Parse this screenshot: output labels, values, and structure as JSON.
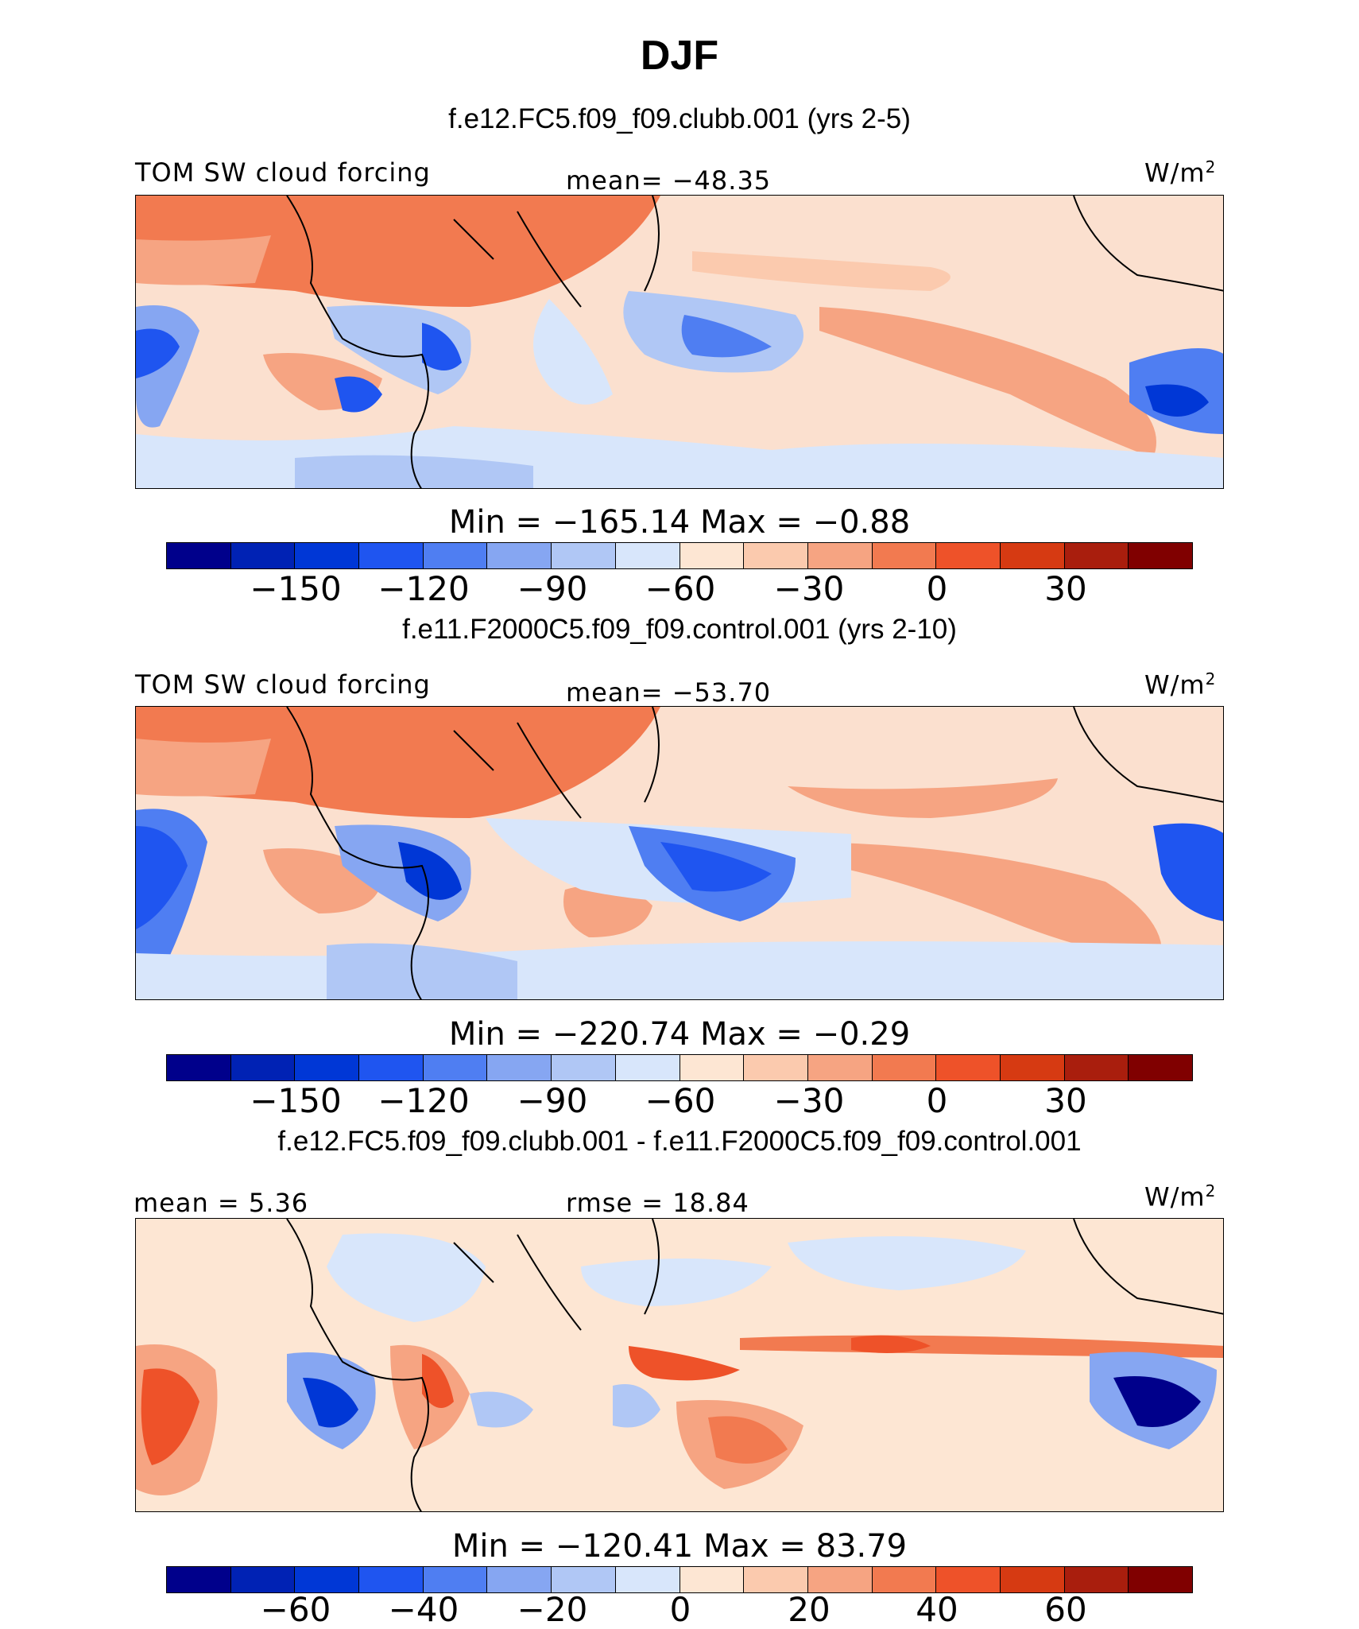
{
  "title": "DJF",
  "panels": [
    {
      "run_title": "f.e12.FC5.f09_f09.clubb.001 (yrs 2-5)",
      "left_label": "TOM SW cloud forcing",
      "center_label": "mean= −48.35",
      "units": "W/m",
      "units_sup": "2",
      "minmax": "Min = −165.14 Max =  −0.88",
      "colorbar_ticks": [
        "−150",
        "−120",
        "−90",
        "−60",
        "−30",
        "0",
        "30"
      ]
    },
    {
      "run_title": "f.e11.F2000C5.f09_f09.control.001 (yrs 2-10)",
      "left_label": "TOM SW cloud forcing",
      "center_label": "mean= −53.70",
      "units": "W/m",
      "units_sup": "2",
      "minmax": "Min = −220.74 Max =  −0.29",
      "colorbar_ticks": [
        "−150",
        "−120",
        "−90",
        "−60",
        "−30",
        "0",
        "30"
      ]
    },
    {
      "run_title": "f.e12.FC5.f09_f09.clubb.001 - f.e11.F2000C5.f09_f09.control.001",
      "left_label": "mean =   5.36",
      "center_label": "rmse =  18.84",
      "units": "W/m",
      "units_sup": "2",
      "minmax": "Min = −120.41 Max =  83.79",
      "colorbar_ticks": [
        "−60",
        "−40",
        "−20",
        "0",
        "20",
        "40",
        "60"
      ]
    }
  ],
  "colorbar_colors": [
    "#00008b",
    "#0022b4",
    "#0037d6",
    "#1f55f0",
    "#4f7ef2",
    "#86a6f2",
    "#b0c7f5",
    "#d8e6fb",
    "#fde6d3",
    "#fbcaae",
    "#f6a482",
    "#f27a50",
    "#ee5229",
    "#d63a12",
    "#a91e0d",
    "#800000"
  ]
}
